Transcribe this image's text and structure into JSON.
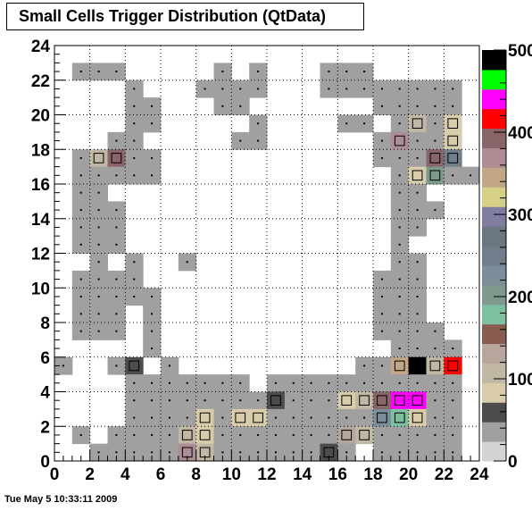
{
  "chart_data": {
    "type": "heatmap",
    "title": "Small Cells Trigger Distribution (QtData)",
    "xlim": [
      0,
      24
    ],
    "ylim": [
      0,
      24
    ],
    "x_ticks": [
      "0",
      "2",
      "4",
      "6",
      "8",
      "10",
      "12",
      "14",
      "16",
      "18",
      "20",
      "22",
      "24"
    ],
    "y_ticks": [
      "0",
      "2",
      "4",
      "6",
      "8",
      "10",
      "12",
      "14",
      "16",
      "18",
      "20",
      "22",
      "24"
    ],
    "z_ticks": [
      "0",
      "100",
      "200",
      "300",
      "400",
      "500"
    ],
    "zlim": [
      0,
      500
    ],
    "grid": true,
    "palette": [
      "#d4d4d4",
      "#a0a0a0",
      "#4c4c4c",
      "#d8ccaa",
      "#c0b7a4",
      "#b7a69c",
      "#885d50",
      "#7dbfa0",
      "#7e9a8c",
      "#7d8e9b",
      "#6f7e8a",
      "#6b7681",
      "#807e9e",
      "#d6cf87",
      "#c2a787",
      "#ae8c93",
      "#886569",
      "#ff0000",
      "#ff00ff",
      "#00ff00",
      "#000000"
    ],
    "cells": [
      [
        1,
        22,
        1
      ],
      [
        2,
        22,
        1
      ],
      [
        3,
        22,
        1
      ],
      [
        9,
        22,
        1
      ],
      [
        11,
        22,
        1
      ],
      [
        15,
        22,
        1
      ],
      [
        16,
        22,
        1
      ],
      [
        17,
        22,
        1
      ],
      [
        4,
        21,
        1
      ],
      [
        8,
        21,
        1
      ],
      [
        9,
        21,
        1
      ],
      [
        10,
        21,
        1
      ],
      [
        11,
        21,
        1
      ],
      [
        15,
        21,
        1
      ],
      [
        16,
        21,
        1
      ],
      [
        17,
        21,
        1
      ],
      [
        18,
        21,
        1
      ],
      [
        19,
        21,
        1
      ],
      [
        20,
        21,
        1
      ],
      [
        21,
        21,
        1
      ],
      [
        22,
        21,
        1
      ],
      [
        4,
        20,
        1
      ],
      [
        5,
        20,
        1
      ],
      [
        9,
        20,
        1
      ],
      [
        10,
        20,
        1
      ],
      [
        18,
        20,
        1
      ],
      [
        19,
        20,
        1
      ],
      [
        20,
        20,
        1
      ],
      [
        21,
        20,
        1
      ],
      [
        22,
        20,
        1
      ],
      [
        4,
        19,
        1
      ],
      [
        5,
        19,
        1
      ],
      [
        11,
        19,
        1
      ],
      [
        16,
        19,
        1
      ],
      [
        17,
        19,
        1
      ],
      [
        19,
        19,
        1
      ],
      [
        20,
        19,
        4
      ],
      [
        21,
        19,
        1
      ],
      [
        22,
        19,
        3
      ],
      [
        3,
        18,
        1
      ],
      [
        4,
        18,
        1
      ],
      [
        10,
        18,
        1
      ],
      [
        11,
        18,
        1
      ],
      [
        18,
        18,
        1
      ],
      [
        19,
        18,
        15
      ],
      [
        20,
        18,
        1
      ],
      [
        21,
        18,
        1
      ],
      [
        22,
        18,
        3
      ],
      [
        1,
        17,
        1
      ],
      [
        2,
        17,
        4
      ],
      [
        3,
        17,
        16
      ],
      [
        4,
        17,
        1
      ],
      [
        5,
        17,
        1
      ],
      [
        18,
        17,
        1
      ],
      [
        19,
        17,
        1
      ],
      [
        20,
        17,
        1
      ],
      [
        21,
        17,
        16
      ],
      [
        22,
        17,
        10
      ],
      [
        1,
        16,
        1
      ],
      [
        2,
        16,
        1
      ],
      [
        3,
        16,
        1
      ],
      [
        4,
        16,
        1
      ],
      [
        5,
        16,
        1
      ],
      [
        19,
        16,
        1
      ],
      [
        20,
        16,
        3
      ],
      [
        21,
        16,
        8
      ],
      [
        22,
        16,
        1
      ],
      [
        23,
        16,
        1
      ],
      [
        1,
        15,
        1
      ],
      [
        2,
        15,
        1
      ],
      [
        19,
        15,
        1
      ],
      [
        20,
        15,
        1
      ],
      [
        1,
        14,
        1
      ],
      [
        2,
        14,
        1
      ],
      [
        3,
        14,
        1
      ],
      [
        19,
        14,
        1
      ],
      [
        20,
        14,
        1
      ],
      [
        21,
        14,
        1
      ],
      [
        1,
        13,
        1
      ],
      [
        2,
        13,
        1
      ],
      [
        3,
        13,
        1
      ],
      [
        19,
        13,
        1
      ],
      [
        20,
        13,
        1
      ],
      [
        1,
        12,
        1
      ],
      [
        2,
        12,
        1
      ],
      [
        3,
        12,
        1
      ],
      [
        19,
        12,
        1
      ],
      [
        2,
        11,
        1
      ],
      [
        4,
        11,
        1
      ],
      [
        7,
        11,
        1
      ],
      [
        19,
        11,
        1
      ],
      [
        20,
        11,
        1
      ],
      [
        1,
        10,
        1
      ],
      [
        2,
        10,
        1
      ],
      [
        3,
        10,
        1
      ],
      [
        4,
        10,
        1
      ],
      [
        18,
        10,
        1
      ],
      [
        19,
        10,
        1
      ],
      [
        20,
        10,
        1
      ],
      [
        1,
        9,
        1
      ],
      [
        2,
        9,
        1
      ],
      [
        3,
        9,
        1
      ],
      [
        4,
        9,
        1
      ],
      [
        5,
        9,
        1
      ],
      [
        18,
        9,
        1
      ],
      [
        19,
        9,
        1
      ],
      [
        20,
        9,
        1
      ],
      [
        1,
        8,
        1
      ],
      [
        2,
        8,
        1
      ],
      [
        3,
        8,
        1
      ],
      [
        5,
        8,
        1
      ],
      [
        18,
        8,
        1
      ],
      [
        19,
        8,
        1
      ],
      [
        20,
        8,
        1
      ],
      [
        1,
        7,
        1
      ],
      [
        2,
        7,
        1
      ],
      [
        3,
        7,
        1
      ],
      [
        5,
        7,
        1
      ],
      [
        18,
        7,
        1
      ],
      [
        19,
        7,
        1
      ],
      [
        20,
        7,
        1
      ],
      [
        21,
        7,
        1
      ],
      [
        5,
        6,
        1
      ],
      [
        19,
        6,
        1
      ],
      [
        20,
        6,
        1
      ],
      [
        21,
        6,
        1
      ],
      [
        22,
        6,
        1
      ],
      [
        0,
        5,
        1
      ],
      [
        3,
        5,
        1
      ],
      [
        4,
        5,
        2
      ],
      [
        6,
        5,
        1
      ],
      [
        17,
        5,
        1
      ],
      [
        18,
        5,
        1
      ],
      [
        19,
        5,
        14
      ],
      [
        20,
        5,
        20
      ],
      [
        21,
        5,
        4
      ],
      [
        22,
        5,
        17
      ],
      [
        4,
        4,
        1
      ],
      [
        5,
        4,
        1
      ],
      [
        6,
        4,
        1
      ],
      [
        7,
        4,
        1
      ],
      [
        8,
        4,
        1
      ],
      [
        9,
        4,
        1
      ],
      [
        10,
        4,
        1
      ],
      [
        12,
        4,
        1
      ],
      [
        13,
        4,
        1
      ],
      [
        14,
        4,
        1
      ],
      [
        15,
        4,
        1
      ],
      [
        16,
        4,
        1
      ],
      [
        17,
        4,
        1
      ],
      [
        18,
        4,
        1
      ],
      [
        19,
        4,
        1
      ],
      [
        20,
        4,
        1
      ],
      [
        21,
        4,
        1
      ],
      [
        22,
        4,
        1
      ],
      [
        4,
        3,
        1
      ],
      [
        5,
        3,
        1
      ],
      [
        6,
        3,
        1
      ],
      [
        7,
        3,
        1
      ],
      [
        8,
        3,
        1
      ],
      [
        9,
        3,
        1
      ],
      [
        10,
        3,
        1
      ],
      [
        11,
        3,
        1
      ],
      [
        12,
        3,
        2
      ],
      [
        13,
        3,
        1
      ],
      [
        14,
        3,
        1
      ],
      [
        15,
        3,
        1
      ],
      [
        16,
        3,
        3
      ],
      [
        17,
        3,
        4
      ],
      [
        18,
        3,
        16
      ],
      [
        19,
        3,
        18
      ],
      [
        20,
        3,
        18
      ],
      [
        21,
        3,
        1
      ],
      [
        22,
        3,
        1
      ],
      [
        4,
        2,
        1
      ],
      [
        5,
        2,
        1
      ],
      [
        6,
        2,
        1
      ],
      [
        7,
        2,
        1
      ],
      [
        8,
        2,
        3
      ],
      [
        9,
        2,
        1
      ],
      [
        10,
        2,
        3
      ],
      [
        11,
        2,
        3
      ],
      [
        12,
        2,
        1
      ],
      [
        13,
        2,
        1
      ],
      [
        14,
        2,
        1
      ],
      [
        15,
        2,
        1
      ],
      [
        16,
        2,
        1
      ],
      [
        17,
        2,
        1
      ],
      [
        18,
        2,
        9
      ],
      [
        19,
        2,
        7
      ],
      [
        20,
        2,
        3
      ],
      [
        21,
        2,
        1
      ],
      [
        22,
        2,
        1
      ],
      [
        1,
        1,
        1
      ],
      [
        3,
        1,
        1
      ],
      [
        4,
        1,
        1
      ],
      [
        5,
        1,
        1
      ],
      [
        6,
        1,
        1
      ],
      [
        7,
        1,
        4
      ],
      [
        8,
        1,
        3
      ],
      [
        9,
        1,
        1
      ],
      [
        10,
        1,
        1
      ],
      [
        11,
        1,
        1
      ],
      [
        12,
        1,
        1
      ],
      [
        13,
        1,
        1
      ],
      [
        14,
        1,
        1
      ],
      [
        15,
        1,
        1
      ],
      [
        16,
        1,
        5
      ],
      [
        17,
        1,
        4
      ],
      [
        18,
        1,
        1
      ],
      [
        19,
        1,
        1
      ],
      [
        20,
        1,
        1
      ],
      [
        21,
        1,
        1
      ],
      [
        22,
        1,
        1
      ],
      [
        2,
        0,
        1
      ],
      [
        3,
        0,
        1
      ],
      [
        4,
        0,
        1
      ],
      [
        5,
        0,
        1
      ],
      [
        6,
        0,
        1
      ],
      [
        7,
        0,
        15
      ],
      [
        8,
        0,
        4
      ],
      [
        9,
        0,
        1
      ],
      [
        10,
        0,
        1
      ],
      [
        11,
        0,
        1
      ],
      [
        12,
        0,
        1
      ],
      [
        13,
        0,
        1
      ],
      [
        14,
        0,
        1
      ],
      [
        15,
        0,
        2
      ],
      [
        16,
        0,
        1
      ],
      [
        18,
        0,
        1
      ],
      [
        19,
        0,
        1
      ],
      [
        20,
        0,
        1
      ],
      [
        21,
        0,
        1
      ],
      [
        22,
        0,
        1
      ]
    ]
  },
  "footer_text": "Tue May  5 10:33:11 2009"
}
